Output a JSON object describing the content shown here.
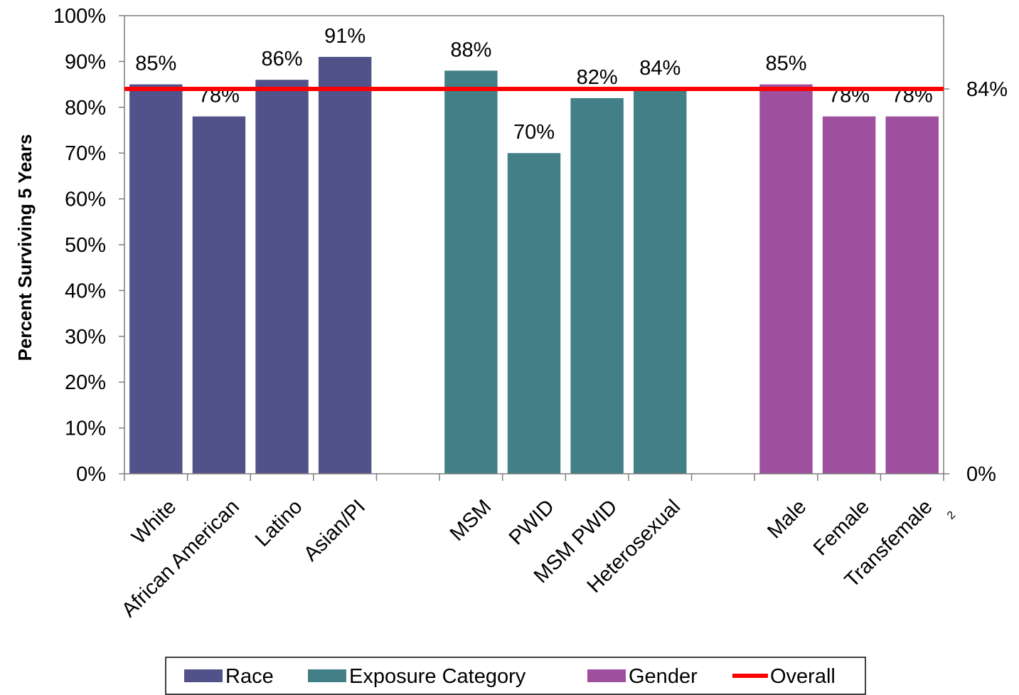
{
  "chart_data": {
    "type": "bar",
    "title": "",
    "xlabel": "",
    "ylabel": "Percent Surviving 5 Years",
    "ylim": [
      0,
      100
    ],
    "yticks": [
      "0%",
      "10%",
      "20%",
      "30%",
      "40%",
      "50%",
      "60%",
      "70%",
      "80%",
      "90%",
      "100%"
    ],
    "y2ticks": [
      "0%",
      "84%"
    ],
    "categories": [
      "White",
      "African American",
      "Latino",
      "Asian/PI",
      "",
      "MSM",
      "PWID",
      "MSM PWID",
      "Heterosexual",
      "",
      "Male",
      "Female",
      "Transfemale"
    ],
    "category_superscripts": {
      "Transfemale": "2"
    },
    "series": [
      {
        "name": "Race",
        "color": "#52528a",
        "values": [
          85,
          78,
          86,
          91,
          null,
          null,
          null,
          null,
          null,
          null,
          null,
          null,
          null
        ],
        "labels": [
          "85%",
          "78%",
          "86%",
          "91%",
          "",
          "",
          "",
          "",
          "",
          "",
          "",
          "",
          ""
        ]
      },
      {
        "name": "Exposure Category",
        "color": "#427f86",
        "values": [
          null,
          null,
          null,
          null,
          null,
          88,
          70,
          82,
          84,
          null,
          null,
          null,
          null
        ],
        "labels": [
          "",
          "",
          "",
          "",
          "",
          "88%",
          "70%",
          "82%",
          "84%",
          "",
          "",
          "",
          ""
        ]
      },
      {
        "name": "Gender",
        "color": "#9e4f9e",
        "values": [
          null,
          null,
          null,
          null,
          null,
          null,
          null,
          null,
          null,
          null,
          85,
          78,
          78
        ],
        "labels": [
          "",
          "",
          "",
          "",
          "",
          "",
          "",
          "",
          "",
          "",
          "85%",
          "78%",
          "78%"
        ]
      }
    ],
    "overall": {
      "name": "Overall",
      "value": 84,
      "label": "84%",
      "color": "#ff0000"
    },
    "legend": {
      "placement": "bottom-center",
      "entries": [
        "Race",
        "Exposure Category",
        "Gender",
        "Overall"
      ]
    },
    "grid": false
  }
}
